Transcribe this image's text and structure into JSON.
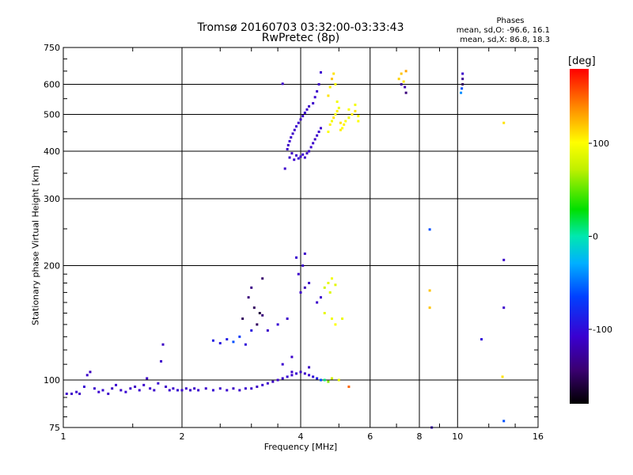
{
  "title": {
    "line1": "Tromsø 20160703 03:32:00-03:33:43",
    "line2": "RwPretec (8p)"
  },
  "phase_stats": {
    "header": "Phases",
    "o_mode": "mean, sd,O: -96.6, 16.1",
    "x_mode": "mean, sd,X:  86.8, 18.3"
  },
  "colorbar": {
    "title": "[deg]",
    "ticks": [
      {
        "value": 100,
        "label": "100"
      },
      {
        "value": 0,
        "label": "0"
      },
      {
        "value": -100,
        "label": "-100"
      }
    ]
  },
  "chart_data": {
    "type": "scatter",
    "xlabel": "Frequency [MHz]",
    "ylabel": "Stationary phase Virtual Height [km]",
    "x_scale": "log",
    "y_scale": "log",
    "xlim": [
      1,
      16
    ],
    "ylim": [
      75,
      750
    ],
    "x_ticks": [
      {
        "value": 1,
        "label": "1"
      },
      {
        "value": 2,
        "label": "2"
      },
      {
        "value": 4,
        "label": "4"
      },
      {
        "value": 6,
        "label": "6"
      },
      {
        "value": 8,
        "label": "8"
      },
      {
        "value": 10,
        "label": "10"
      },
      {
        "value": 16,
        "label": "16"
      }
    ],
    "y_ticks": [
      {
        "value": 75,
        "label": "75"
      },
      {
        "value": 100,
        "label": "100"
      },
      {
        "value": 200,
        "label": "200"
      },
      {
        "value": 300,
        "label": "300"
      },
      {
        "value": 400,
        "label": "400"
      },
      {
        "value": 500,
        "label": "500"
      },
      {
        "value": 600,
        "label": "600"
      },
      {
        "value": 750,
        "label": "750"
      }
    ],
    "x_grid": [
      2,
      4,
      6,
      8,
      10
    ],
    "y_grid": [
      100,
      200,
      300,
      400,
      500,
      600
    ],
    "grid": true,
    "color_scale": {
      "min": -180,
      "max": 180,
      "unit": "deg"
    },
    "points": [
      [
        1.02,
        92,
        -110
      ],
      [
        1.05,
        92,
        -110
      ],
      [
        1.08,
        93,
        -108
      ],
      [
        1.1,
        92,
        -112
      ],
      [
        1.13,
        96,
        -105
      ],
      [
        1.15,
        103,
        -110
      ],
      [
        1.17,
        105,
        -115
      ],
      [
        1.2,
        95,
        -110
      ],
      [
        1.23,
        93,
        -108
      ],
      [
        1.26,
        94,
        -105
      ],
      [
        1.3,
        92,
        -110
      ],
      [
        1.33,
        95,
        -112
      ],
      [
        1.36,
        97,
        -108
      ],
      [
        1.4,
        94,
        -110
      ],
      [
        1.44,
        93,
        -105
      ],
      [
        1.48,
        95,
        -110
      ],
      [
        1.52,
        96,
        -112
      ],
      [
        1.56,
        94,
        -108
      ],
      [
        1.6,
        97,
        -110
      ],
      [
        1.63,
        101,
        -112
      ],
      [
        1.66,
        95,
        -108
      ],
      [
        1.7,
        94,
        -110
      ],
      [
        1.74,
        98,
        -105
      ],
      [
        1.77,
        112,
        -110
      ],
      [
        1.79,
        124,
        -112
      ],
      [
        1.82,
        96,
        -110
      ],
      [
        1.86,
        94,
        -108
      ],
      [
        1.9,
        95,
        -110
      ],
      [
        1.95,
        94,
        -105
      ],
      [
        2.0,
        94,
        -110
      ],
      [
        2.05,
        95,
        -108
      ],
      [
        2.1,
        94,
        -110
      ],
      [
        2.15,
        95,
        -112
      ],
      [
        2.2,
        94,
        -108
      ],
      [
        2.3,
        95,
        -110
      ],
      [
        2.4,
        94,
        -105
      ],
      [
        2.5,
        95,
        -110
      ],
      [
        2.6,
        94,
        -108
      ],
      [
        2.7,
        95,
        -112
      ],
      [
        2.8,
        94,
        -110
      ],
      [
        2.9,
        95,
        -108
      ],
      [
        3.0,
        95,
        -110
      ],
      [
        3.1,
        96,
        -112
      ],
      [
        3.2,
        97,
        -108
      ],
      [
        3.3,
        98,
        -110
      ],
      [
        3.4,
        99,
        -112
      ],
      [
        3.5,
        100,
        -108
      ],
      [
        3.6,
        101,
        -110
      ],
      [
        3.7,
        102,
        -105
      ],
      [
        3.8,
        103,
        -110
      ],
      [
        3.9,
        104,
        -108
      ],
      [
        4.0,
        105,
        -112
      ],
      [
        4.1,
        104,
        -110
      ],
      [
        4.2,
        103,
        -108
      ],
      [
        4.3,
        102,
        -100
      ],
      [
        4.4,
        101,
        -90
      ],
      [
        4.5,
        100,
        -60
      ],
      [
        4.6,
        100,
        10
      ],
      [
        4.7,
        99,
        60
      ],
      [
        4.8,
        101,
        80
      ],
      [
        5.0,
        100,
        90
      ],
      [
        5.3,
        96,
        150
      ],
      [
        2.4,
        127,
        -90
      ],
      [
        2.5,
        125,
        -95
      ],
      [
        2.6,
        128,
        -90
      ],
      [
        2.7,
        126,
        -60
      ],
      [
        2.8,
        130,
        -70
      ],
      [
        2.9,
        124,
        -100
      ],
      [
        3.0,
        135,
        -95
      ],
      [
        3.1,
        140,
        -150
      ],
      [
        3.2,
        148,
        -140
      ],
      [
        3.15,
        150,
        -160
      ],
      [
        3.05,
        155,
        -150
      ],
      [
        2.95,
        165,
        -140
      ],
      [
        3.0,
        175,
        -135
      ],
      [
        3.2,
        185,
        -145
      ],
      [
        2.85,
        145,
        -150
      ],
      [
        3.3,
        135,
        -110
      ],
      [
        3.5,
        140,
        -105
      ],
      [
        3.7,
        145,
        -110
      ],
      [
        4.0,
        170,
        -110
      ],
      [
        4.1,
        175,
        -115
      ],
      [
        4.2,
        180,
        -110
      ],
      [
        3.95,
        190,
        -110
      ],
      [
        4.05,
        200,
        -110
      ],
      [
        3.9,
        210,
        -108
      ],
      [
        4.1,
        215,
        -110
      ],
      [
        4.4,
        160,
        -110
      ],
      [
        4.5,
        165,
        -108
      ],
      [
        4.6,
        175,
        80
      ],
      [
        4.7,
        180,
        90
      ],
      [
        4.8,
        185,
        95
      ],
      [
        4.9,
        178,
        88
      ],
      [
        4.75,
        170,
        85
      ],
      [
        4.6,
        150,
        90
      ],
      [
        4.8,
        145,
        95
      ],
      [
        4.9,
        140,
        100
      ],
      [
        5.1,
        145,
        92
      ],
      [
        3.8,
        105,
        -110
      ],
      [
        4.2,
        108,
        -112
      ],
      [
        3.6,
        110,
        -108
      ],
      [
        3.8,
        115,
        -110
      ],
      [
        3.75,
        385,
        -110
      ],
      [
        3.8,
        395,
        -112
      ],
      [
        3.85,
        380,
        -108
      ],
      [
        3.9,
        390,
        -110
      ],
      [
        3.95,
        383,
        -105
      ],
      [
        4.0,
        387,
        -110
      ],
      [
        4.05,
        392,
        -108
      ],
      [
        4.1,
        385,
        -110
      ],
      [
        4.15,
        395,
        -112
      ],
      [
        4.2,
        400,
        -110
      ],
      [
        4.25,
        410,
        -108
      ],
      [
        4.3,
        420,
        -110
      ],
      [
        4.35,
        430,
        -112
      ],
      [
        4.4,
        440,
        -110
      ],
      [
        4.45,
        450,
        -108
      ],
      [
        4.5,
        460,
        -110
      ],
      [
        3.7,
        405,
        -110
      ],
      [
        3.72,
        415,
        -112
      ],
      [
        3.75,
        425,
        -108
      ],
      [
        3.78,
        435,
        -110
      ],
      [
        3.82,
        445,
        -112
      ],
      [
        3.86,
        455,
        -110
      ],
      [
        3.9,
        465,
        -108
      ],
      [
        3.95,
        475,
        -110
      ],
      [
        4.0,
        485,
        -112
      ],
      [
        4.05,
        495,
        -110
      ],
      [
        4.1,
        505,
        -108
      ],
      [
        4.15,
        515,
        -110
      ],
      [
        4.2,
        525,
        -112
      ],
      [
        4.3,
        535,
        -110
      ],
      [
        4.35,
        555,
        -108
      ],
      [
        4.4,
        575,
        -110
      ],
      [
        4.45,
        600,
        -112
      ],
      [
        3.65,
        360,
        -110
      ],
      [
        3.6,
        602,
        -110
      ],
      [
        4.5,
        645,
        -108
      ],
      [
        4.7,
        450,
        100
      ],
      [
        4.75,
        470,
        105
      ],
      [
        4.8,
        480,
        95
      ],
      [
        4.85,
        490,
        110
      ],
      [
        4.9,
        500,
        100
      ],
      [
        4.95,
        510,
        105
      ],
      [
        5.0,
        520,
        95
      ],
      [
        5.05,
        475,
        110
      ],
      [
        5.1,
        460,
        100
      ],
      [
        5.15,
        470,
        105
      ],
      [
        5.2,
        480,
        100
      ],
      [
        5.3,
        490,
        95
      ],
      [
        5.4,
        500,
        105
      ],
      [
        5.5,
        510,
        110
      ],
      [
        5.6,
        495,
        100
      ],
      [
        4.7,
        560,
        110
      ],
      [
        4.75,
        590,
        105
      ],
      [
        4.8,
        620,
        120
      ],
      [
        4.85,
        640,
        110
      ],
      [
        4.9,
        600,
        100
      ],
      [
        4.95,
        540,
        95
      ],
      [
        5.05,
        455,
        105
      ],
      [
        5.3,
        515,
        100
      ],
      [
        5.5,
        530,
        95
      ],
      [
        5.6,
        480,
        100
      ],
      [
        7.1,
        620,
        115
      ],
      [
        7.2,
        640,
        120
      ],
      [
        7.3,
        610,
        110
      ],
      [
        7.4,
        650,
        130
      ],
      [
        7.2,
        600,
        -130
      ],
      [
        7.35,
        590,
        -120
      ],
      [
        7.4,
        570,
        -140
      ],
      [
        10.3,
        640,
        -110
      ],
      [
        10.3,
        620,
        -130
      ],
      [
        10.3,
        600,
        -150
      ],
      [
        10.25,
        585,
        -60
      ],
      [
        10.2,
        570,
        -40
      ],
      [
        8.5,
        249,
        -60
      ],
      [
        8.5,
        172,
        120
      ],
      [
        8.5,
        155,
        120
      ],
      [
        8.6,
        75,
        -110
      ],
      [
        13.1,
        475,
        110
      ],
      [
        13.1,
        207,
        -110
      ],
      [
        13.1,
        155,
        -110
      ],
      [
        11.5,
        128,
        -100
      ],
      [
        13.0,
        102,
        110
      ],
      [
        13.1,
        78,
        -60
      ]
    ]
  }
}
